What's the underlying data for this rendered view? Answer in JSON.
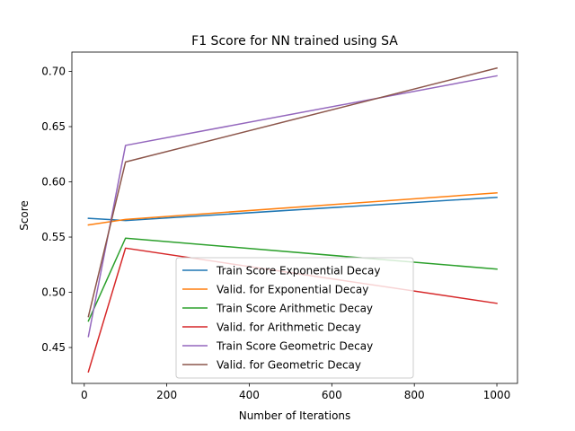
{
  "chart_data": {
    "type": "line",
    "title": "F1 Score for NN trained using SA",
    "xlabel": "Number of Iterations",
    "ylabel": "Score",
    "xlim": [
      -30,
      1050
    ],
    "ylim": [
      0.4175,
      0.7175
    ],
    "xticks": [
      0,
      200,
      400,
      600,
      800,
      1000
    ],
    "xtick_labels": [
      "0",
      "200",
      "400",
      "600",
      "800",
      "1000"
    ],
    "yticks": [
      0.45,
      0.5,
      0.55,
      0.6,
      0.65,
      0.7
    ],
    "ytick_labels": [
      "0.45",
      "0.50",
      "0.55",
      "0.60",
      "0.65",
      "0.70"
    ],
    "grid": false,
    "legend_position": "lower-center",
    "x": [
      10,
      100,
      1000
    ],
    "series": [
      {
        "name": "Train Score Exponential Decay",
        "color": "#1f77b4",
        "values": [
          0.567,
          0.565,
          0.586
        ]
      },
      {
        "name": "Valid. for Exponential Decay",
        "color": "#ff7f0e",
        "values": [
          0.561,
          0.566,
          0.59
        ]
      },
      {
        "name": "Train Score Arithmetic Decay",
        "color": "#2ca02c",
        "values": [
          0.474,
          0.549,
          0.521
        ]
      },
      {
        "name": "Valid. for Arithmetic Decay",
        "color": "#d62728",
        "values": [
          0.428,
          0.54,
          0.49
        ]
      },
      {
        "name": "Train Score Geometric Decay",
        "color": "#9467bd",
        "values": [
          0.46,
          0.633,
          0.696
        ]
      },
      {
        "name": "Valid. for Geometric Decay",
        "color": "#8c564b",
        "values": [
          0.478,
          0.618,
          0.703
        ]
      }
    ]
  }
}
